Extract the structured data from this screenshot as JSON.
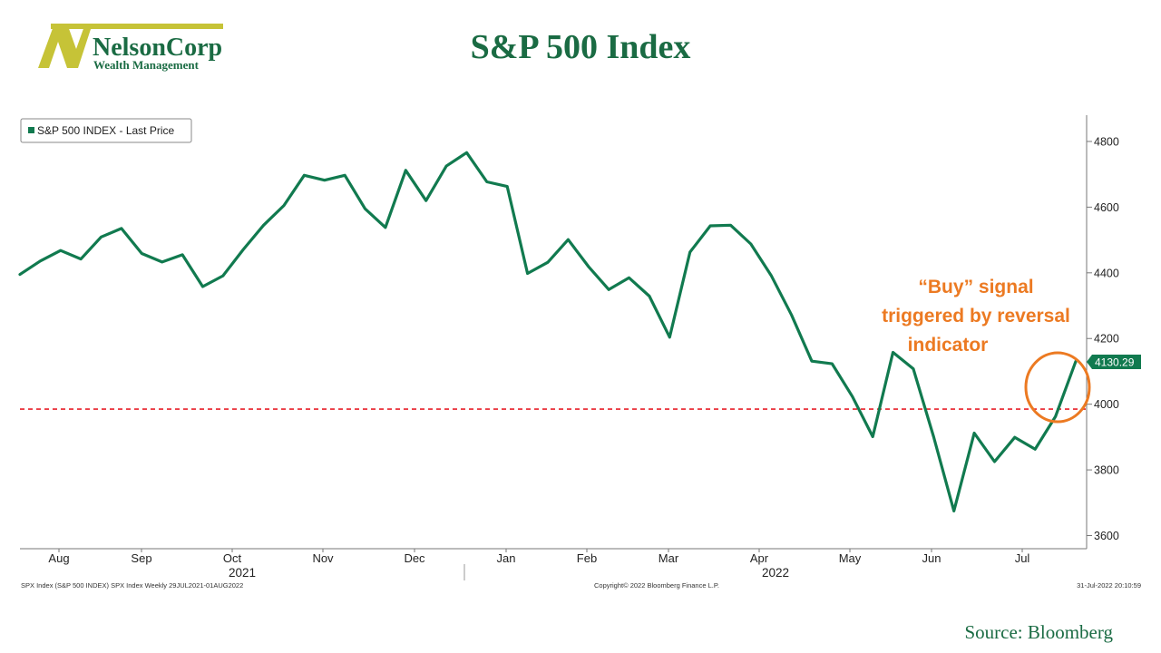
{
  "header": {
    "logo_name": "NelsonCorp",
    "logo_sub": "Wealth Management",
    "title": "S&P 500 Index"
  },
  "footer": {
    "source": "Source: Bloomberg"
  },
  "colors": {
    "brand_green": "#1a6b43",
    "line": "#117a4f",
    "reference": "#e8212a",
    "annotation": "#ec7a22",
    "logo_gold": "#c6c337"
  },
  "chart_data": {
    "type": "line",
    "title": "",
    "legend": "S&P 500 INDEX - Last Price",
    "legend_position": "top-left",
    "ylim": [
      3560,
      4880
    ],
    "yticks": [
      3600,
      3800,
      4000,
      4200,
      4400,
      4600,
      4800
    ],
    "x_month_labels": [
      "Aug",
      "Sep",
      "Oct",
      "Nov",
      "Dec",
      "Jan",
      "Feb",
      "Mar",
      "Apr",
      "May",
      "Jun",
      "Jul"
    ],
    "x_year_labels": [
      "2021",
      "2022"
    ],
    "series": [
      {
        "name": "S&P 500 INDEX - Last Price",
        "values": [
          4395,
          4436,
          4468,
          4442,
          4509,
          4535,
          4459,
          4433,
          4455,
          4358,
          4391,
          4471,
          4545,
          4605,
          4697,
          4682,
          4697,
          4595,
          4538,
          4712,
          4620,
          4725,
          4766,
          4677,
          4663,
          4398,
          4432,
          4501,
          4419,
          4349,
          4385,
          4329,
          4204,
          4463,
          4543,
          4545,
          4488,
          4392,
          4272,
          4131,
          4123,
          4023,
          3901,
          4158,
          4108,
          3901,
          3675,
          3912,
          3825,
          3899,
          3863,
          3962,
          4130.29
        ]
      }
    ],
    "last_value_label": "4130.29",
    "reference_line": 3985,
    "annotation": {
      "lines": [
        "“Buy” signal",
        "triggered by reversal",
        "indicator"
      ]
    },
    "footnotes": {
      "left": "SPX Index (S&P 500 INDEX) SPX Index  Weekly 29JUL2021-01AUG2022",
      "center": "Copyright© 2022 Bloomberg Finance L.P.",
      "right": "31-Jul-2022 20:10:59"
    }
  }
}
